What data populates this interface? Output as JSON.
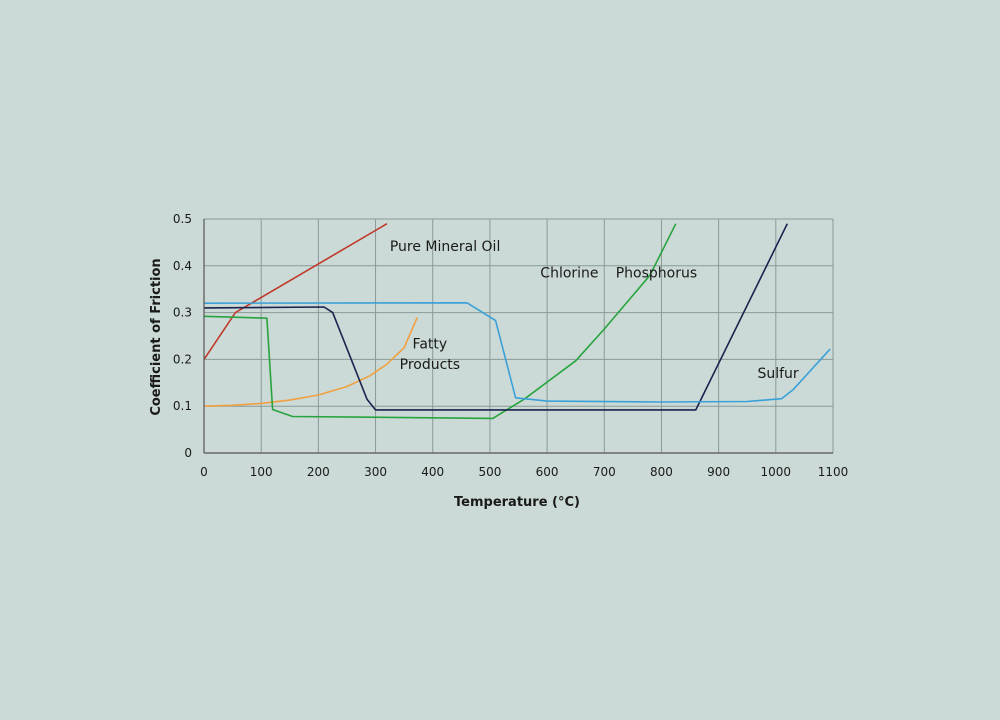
{
  "chart_data": {
    "type": "line",
    "xlabel": "Temperature (°C)",
    "ylabel": "Coefficient of Friction",
    "xlim": [
      0,
      1100
    ],
    "ylim": [
      0,
      0.5
    ],
    "x_ticks": [
      "0",
      "100",
      "200",
      "300",
      "400",
      "500",
      "600",
      "700",
      "800",
      "900",
      "1000",
      "1100"
    ],
    "y_ticks": [
      "0",
      "0.1",
      "0.2",
      "0.3",
      "0.4",
      "0.5"
    ],
    "grid": true,
    "colors": {
      "background": "#cbdad6",
      "grid": "#8a9a97",
      "axis": "#555555"
    },
    "series": [
      {
        "name": "Pure Mineral Oil",
        "color": "#c0392b",
        "points": [
          [
            0,
            0.2
          ],
          [
            55,
            0.3
          ],
          [
            320,
            0.49
          ]
        ]
      },
      {
        "name": "Fatty Products",
        "color": "#f0a040",
        "points": [
          [
            0,
            0.1
          ],
          [
            50,
            0.102
          ],
          [
            100,
            0.106
          ],
          [
            150,
            0.113
          ],
          [
            200,
            0.124
          ],
          [
            250,
            0.142
          ],
          [
            290,
            0.165
          ],
          [
            320,
            0.19
          ],
          [
            350,
            0.225
          ],
          [
            373,
            0.29
          ]
        ]
      },
      {
        "name": "Chlorine",
        "color": "#27a33e",
        "points": [
          [
            0,
            0.292
          ],
          [
            110,
            0.288
          ],
          [
            120,
            0.093
          ],
          [
            155,
            0.078
          ],
          [
            505,
            0.074
          ],
          [
            560,
            0.115
          ],
          [
            650,
            0.197
          ],
          [
            700,
            0.265
          ],
          [
            780,
            0.38
          ],
          [
            825,
            0.49
          ]
        ]
      },
      {
        "name": "Phosphorus",
        "color": "#1b2350",
        "points": [
          [
            0,
            0.31
          ],
          [
            210,
            0.312
          ],
          [
            225,
            0.3
          ],
          [
            285,
            0.115
          ],
          [
            300,
            0.092
          ],
          [
            860,
            0.092
          ],
          [
            1020,
            0.49
          ]
        ]
      },
      {
        "name": "Sulfur",
        "color": "#3aa0d8",
        "points": [
          [
            0,
            0.32
          ],
          [
            460,
            0.321
          ],
          [
            510,
            0.283
          ],
          [
            545,
            0.118
          ],
          [
            600,
            0.111
          ],
          [
            800,
            0.109
          ],
          [
            950,
            0.11
          ],
          [
            1010,
            0.116
          ],
          [
            1030,
            0.135
          ],
          [
            1095,
            0.222
          ]
        ]
      }
    ],
    "labels": [
      {
        "text": "Pure Mineral Oil",
        "x": 325,
        "y": 0.432,
        "anchor": "start"
      },
      {
        "text": "Fatty",
        "x": 395,
        "y": 0.223,
        "anchor": "middle"
      },
      {
        "text": "Products",
        "x": 395,
        "y": 0.18,
        "anchor": "middle"
      },
      {
        "text": "Chlorine",
        "x": 690,
        "y": 0.375,
        "anchor": "end"
      },
      {
        "text": "Phosphorus",
        "x": 720,
        "y": 0.375,
        "anchor": "start"
      },
      {
        "text": "Sulfur",
        "x": 1040,
        "y": 0.16,
        "anchor": "end"
      }
    ]
  }
}
